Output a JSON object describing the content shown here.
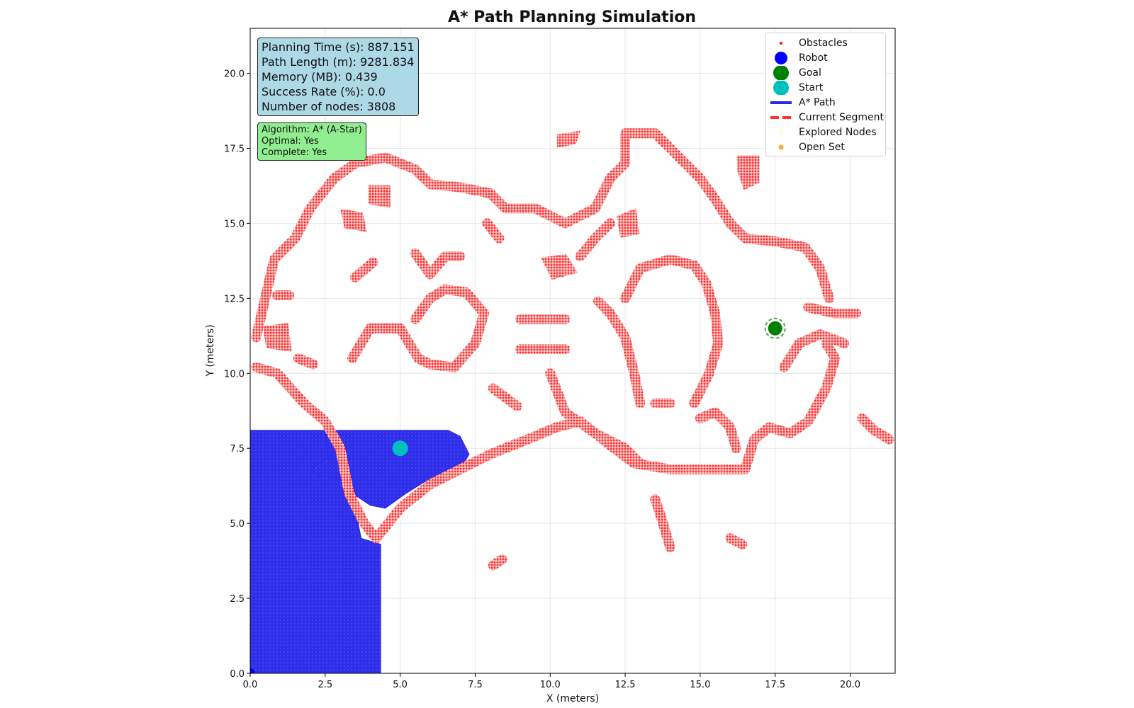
{
  "chart_data": {
    "type": "scatter",
    "title": "A* Path Planning Simulation",
    "xlabel": "X (meters)",
    "ylabel": "Y (meters)",
    "xlim": [
      0,
      21.5
    ],
    "ylim": [
      0,
      21.5
    ],
    "xticks": [
      "0.0",
      "2.5",
      "5.0",
      "7.5",
      "10.0",
      "12.5",
      "15.0",
      "17.5",
      "20.0"
    ],
    "yticks": [
      "0.0",
      "2.5",
      "5.0",
      "7.5",
      "10.0",
      "12.5",
      "15.0",
      "17.5",
      "20.0"
    ],
    "grid": true,
    "legend_position": "top-right",
    "series": [
      {
        "name": "Obstacles",
        "color": "#ff2a2a",
        "style": "small square markers"
      },
      {
        "name": "Robot",
        "color": "#0000ff",
        "x": 0.0,
        "y": 0.0
      },
      {
        "name": "Goal",
        "color": "#008000",
        "x": 17.5,
        "y": 11.5
      },
      {
        "name": "Start",
        "color": "#00bfbf",
        "x": 5.0,
        "y": 7.5
      },
      {
        "name": "A* Path",
        "color": "#0000ff",
        "style": "solid line"
      },
      {
        "name": "Current Segment",
        "color": "#ff2a2a",
        "style": "dashed line"
      },
      {
        "name": "Explored Nodes",
        "color": "#ffff66",
        "style": "tiny points"
      },
      {
        "name": "Open Set",
        "color": "#ffa500",
        "style": "points"
      }
    ],
    "explored_region": {
      "color": "#2a2ae6",
      "polygons": [
        [
          [
            0,
            0
          ],
          [
            4.35,
            0
          ],
          [
            4.35,
            4.3
          ],
          [
            3.7,
            4.5
          ],
          [
            3.5,
            5.5
          ],
          [
            3.2,
            6.5
          ],
          [
            2.5,
            8.1
          ],
          [
            0,
            8.1
          ]
        ],
        [
          [
            2.5,
            8.1
          ],
          [
            6.6,
            8.1
          ],
          [
            7.0,
            7.9
          ],
          [
            7.3,
            7.3
          ],
          [
            7.0,
            6.8
          ],
          [
            6.0,
            6.5
          ],
          [
            5.2,
            6.0
          ],
          [
            4.5,
            5.5
          ],
          [
            4.0,
            5.6
          ],
          [
            3.4,
            6.0
          ],
          [
            3.0,
            6.5
          ],
          [
            2.3,
            6.6
          ],
          [
            2.0,
            6.8
          ],
          [
            2.6,
            7.2
          ]
        ]
      ]
    },
    "obstacle_polylines": [
      [
        [
          0.2,
          10.2
        ],
        [
          0.9,
          10.0
        ],
        [
          1.8,
          9.0
        ],
        [
          2.5,
          8.4
        ],
        [
          3.0,
          7.5
        ],
        [
          3.3,
          6.0
        ],
        [
          3.8,
          5.0
        ],
        [
          4.2,
          4.5
        ],
        [
          5.0,
          5.5
        ],
        [
          6.0,
          6.3
        ],
        [
          7.0,
          6.8
        ],
        [
          8.0,
          7.3
        ],
        [
          9.5,
          7.9
        ],
        [
          10.2,
          8.2
        ],
        [
          11.0,
          8.4
        ],
        [
          12.0,
          7.6
        ],
        [
          12.8,
          7.0
        ],
        [
          14.0,
          6.8
        ],
        [
          15.5,
          6.8
        ],
        [
          16.5,
          6.8
        ],
        [
          16.8,
          7.8
        ],
        [
          17.3,
          8.2
        ],
        [
          18.0,
          8.0
        ],
        [
          18.6,
          8.4
        ],
        [
          19.2,
          9.5
        ],
        [
          19.5,
          10.5
        ],
        [
          19.2,
          11.0
        ]
      ],
      [
        [
          0.2,
          11.2
        ],
        [
          0.5,
          12.5
        ],
        [
          0.8,
          13.8
        ],
        [
          1.5,
          14.5
        ],
        [
          2.0,
          15.5
        ],
        [
          2.8,
          16.5
        ],
        [
          3.5,
          17.0
        ],
        [
          4.5,
          17.2
        ],
        [
          5.5,
          16.8
        ],
        [
          6.0,
          16.3
        ],
        [
          7.0,
          16.2
        ],
        [
          8.0,
          16.0
        ],
        [
          8.5,
          15.5
        ],
        [
          9.5,
          15.5
        ],
        [
          10.5,
          15.0
        ],
        [
          11.5,
          15.5
        ],
        [
          12.0,
          16.5
        ],
        [
          12.5,
          17.0
        ],
        [
          12.5,
          18.0
        ],
        [
          13.5,
          18.0
        ],
        [
          14.0,
          17.5
        ],
        [
          14.5,
          17.0
        ],
        [
          15.0,
          16.5
        ],
        [
          15.5,
          15.8
        ],
        [
          16.0,
          15.0
        ],
        [
          16.5,
          14.5
        ],
        [
          17.5,
          14.4
        ],
        [
          18.5,
          14.2
        ],
        [
          19.0,
          13.5
        ],
        [
          19.3,
          12.5
        ]
      ],
      [
        [
          3.4,
          10.5
        ],
        [
          4.0,
          11.5
        ],
        [
          5.0,
          11.5
        ],
        [
          5.6,
          10.5
        ],
        [
          6.0,
          10.3
        ],
        [
          6.8,
          10.2
        ],
        [
          7.5,
          11.0
        ],
        [
          7.8,
          12.0
        ],
        [
          7.2,
          12.7
        ],
        [
          6.5,
          12.8
        ],
        [
          6.0,
          12.5
        ],
        [
          5.5,
          11.8
        ]
      ],
      [
        [
          5.5,
          14.0
        ],
        [
          6.0,
          13.3
        ],
        [
          6.5,
          13.9
        ],
        [
          7.0,
          13.9
        ]
      ],
      [
        [
          9.0,
          11.8
        ],
        [
          10.5,
          11.8
        ]
      ],
      [
        [
          9.0,
          10.8
        ],
        [
          10.5,
          10.8
        ]
      ],
      [
        [
          10.0,
          10.0
        ],
        [
          10.5,
          8.7
        ],
        [
          11.5,
          8.0
        ],
        [
          12.5,
          7.5
        ],
        [
          13.0,
          7.0
        ]
      ],
      [
        [
          11.6,
          12.4
        ],
        [
          12.0,
          12.0
        ],
        [
          12.5,
          11.2
        ],
        [
          12.8,
          10.0
        ],
        [
          13.0,
          9.0
        ]
      ],
      [
        [
          12.5,
          12.5
        ],
        [
          13.0,
          13.5
        ],
        [
          14.0,
          13.8
        ],
        [
          14.8,
          13.6
        ],
        [
          15.2,
          13.0
        ],
        [
          15.5,
          12.0
        ],
        [
          15.6,
          11.0
        ],
        [
          15.3,
          10.0
        ],
        [
          14.8,
          9.0
        ]
      ],
      [
        [
          13.5,
          9.0
        ],
        [
          14.0,
          9.0
        ]
      ],
      [
        [
          11.0,
          13.9
        ],
        [
          11.5,
          14.5
        ],
        [
          12.0,
          15.0
        ]
      ],
      [
        [
          15.0,
          8.5
        ],
        [
          15.5,
          8.7
        ],
        [
          16.0,
          8.2
        ],
        [
          16.2,
          7.5
        ]
      ],
      [
        [
          17.8,
          10.2
        ],
        [
          18.3,
          11.0
        ],
        [
          19.0,
          11.3
        ],
        [
          19.8,
          11.0
        ]
      ],
      [
        [
          18.6,
          12.2
        ],
        [
          19.5,
          12.0
        ],
        [
          20.2,
          12.0
        ]
      ],
      [
        [
          20.4,
          8.5
        ],
        [
          20.8,
          8.1
        ],
        [
          21.3,
          7.8
        ]
      ],
      [
        [
          13.5,
          5.8
        ],
        [
          13.7,
          5.2
        ],
        [
          14.0,
          4.2
        ]
      ],
      [
        [
          16.0,
          4.5
        ],
        [
          16.4,
          4.3
        ]
      ],
      [
        [
          8.1,
          3.6
        ],
        [
          8.4,
          3.8
        ]
      ],
      [
        [
          8.1,
          9.5
        ],
        [
          8.5,
          9.2
        ],
        [
          8.9,
          8.9
        ]
      ],
      [
        [
          0.9,
          12.6
        ],
        [
          1.3,
          12.6
        ]
      ],
      [
        [
          1.6,
          10.5
        ],
        [
          2.1,
          10.3
        ]
      ],
      [
        [
          7.9,
          15.0
        ],
        [
          8.3,
          14.5
        ]
      ],
      [
        [
          3.5,
          13.2
        ],
        [
          4.1,
          13.7
        ]
      ]
    ],
    "obstacle_blobs": [
      [
        [
          16.3,
          17.2
        ],
        [
          16.9,
          17.2
        ],
        [
          16.9,
          16.4
        ],
        [
          16.5,
          16.2
        ],
        [
          16.3,
          16.8
        ]
      ],
      [
        [
          10.3,
          17.9
        ],
        [
          10.9,
          18.0
        ],
        [
          10.8,
          17.7
        ],
        [
          10.3,
          17.6
        ]
      ],
      [
        [
          12.3,
          15.2
        ],
        [
          12.8,
          15.4
        ],
        [
          12.9,
          14.7
        ],
        [
          12.4,
          14.6
        ]
      ],
      [
        [
          9.8,
          13.8
        ],
        [
          10.5,
          13.9
        ],
        [
          10.8,
          13.4
        ],
        [
          10.1,
          13.2
        ]
      ],
      [
        [
          4.0,
          16.2
        ],
        [
          4.6,
          16.2
        ],
        [
          4.6,
          15.6
        ],
        [
          4.0,
          15.7
        ]
      ],
      [
        [
          3.1,
          15.4
        ],
        [
          3.7,
          15.3
        ],
        [
          3.8,
          14.8
        ],
        [
          3.2,
          14.9
        ]
      ],
      [
        [
          0.5,
          11.5
        ],
        [
          1.2,
          11.6
        ],
        [
          1.3,
          10.8
        ],
        [
          0.6,
          10.9
        ]
      ]
    ],
    "stats": {
      "planning_time": "Planning Time (s): 887.151",
      "path_length": "Path Length (m): 9281.834",
      "memory": "Memory (MB): 0.439",
      "success_rate": "Success Rate (%): 0.0",
      "nodes": "Number of nodes: 3808"
    },
    "algorithm_info": {
      "algorithm": "Algorithm: A* (A-Star)",
      "optimal": "Optimal: Yes",
      "complete": "Complete: Yes"
    }
  }
}
